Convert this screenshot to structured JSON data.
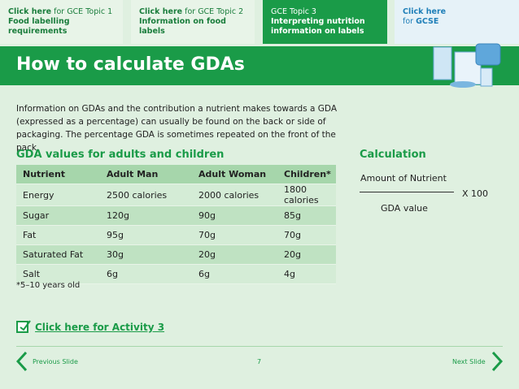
{
  "tabs": [
    {
      "link": "Click here",
      "text": "for GCE Topic 1",
      "subtitle": "Food labelling requirements"
    },
    {
      "link": "Click here",
      "text": "for GCE Topic 2",
      "subtitle": "Information on food labels"
    },
    {
      "text": "GCE Topic 3",
      "subtitle": "Interpreting nutrition information on labels"
    },
    {
      "link": "Click here",
      "text": "for",
      "bold": "GCSE"
    }
  ],
  "header": {
    "title": "How to calculate GDAs"
  },
  "intro": "Information on GDAs and the contribution a nutrient makes towards a GDA (expressed as a percentage) can usually be found on the back or side of packaging. The percentage GDA is sometimes repeated on the front of the pack.",
  "table": {
    "title": "GDA values for adults and children",
    "header": [
      "Nutrient",
      "Adult Man",
      "Adult Woman",
      "Children*"
    ],
    "rows": [
      [
        "Energy",
        "2500 calories",
        "2000 calories",
        "1800 calories"
      ],
      [
        "Sugar",
        "120g",
        "90g",
        "85g"
      ],
      [
        "Fat",
        "95g",
        "70g",
        "70g"
      ],
      [
        "Saturated Fat",
        "30g",
        "20g",
        "20g"
      ],
      [
        "Salt",
        "6g",
        "6g",
        "4g"
      ]
    ],
    "note": "*5–10 years old"
  },
  "calculation": {
    "title": "Calculation",
    "numerator": "Amount of Nutrient",
    "denominator": "GDA value",
    "multiplier": "X 100"
  },
  "activity": "Click here for Activity 3",
  "footer": {
    "previous": "Previous Slide",
    "page": "7",
    "next": "Next Slide"
  }
}
